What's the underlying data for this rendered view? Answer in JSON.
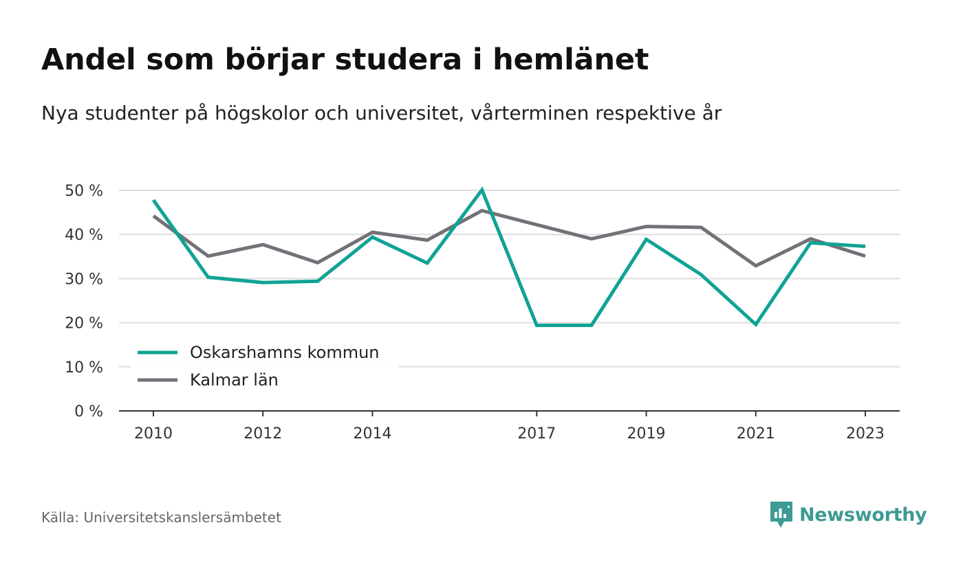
{
  "title": "Andel som börjar studera i hemlänet",
  "subtitle": "Nya studenter på högskolor och universitet, vårterminen respektive år",
  "source": "Källa: Universitetskanslersämbetet",
  "brand": {
    "name": "Newsworthy",
    "icon": "newsworthy-logo-icon",
    "color": "#3d9a94"
  },
  "chart_data": {
    "type": "line",
    "x": [
      2010,
      2011,
      2012,
      2013,
      2014,
      2015,
      2016,
      2017,
      2018,
      2019,
      2020,
      2021,
      2022,
      2023
    ],
    "x_tick_labels": [
      "2010",
      "2012",
      "2014",
      "2017",
      "2019",
      "2021",
      "2023"
    ],
    "y_ticks": [
      0,
      10,
      20,
      30,
      40,
      50
    ],
    "y_tick_labels": [
      "0 %",
      "10 %",
      "20 %",
      "30 %",
      "40 %",
      "50 %"
    ],
    "ylim": [
      0,
      50
    ],
    "grid": true,
    "legend_position": "bottom-left",
    "series": [
      {
        "name": "Oskarshamns kommun",
        "color": "#0fa394",
        "values": [
          47.8,
          30.3,
          29.1,
          29.4,
          39.4,
          33.5,
          50.1,
          19.4,
          19.4,
          38.9,
          30.9,
          19.6,
          38.1,
          37.3
        ]
      },
      {
        "name": "Kalmar län",
        "color": "#737178",
        "values": [
          44.2,
          35.1,
          37.7,
          33.6,
          40.5,
          38.7,
          45.4,
          42.2,
          39.0,
          41.8,
          41.6,
          32.9,
          39.0,
          35.1
        ]
      }
    ]
  }
}
